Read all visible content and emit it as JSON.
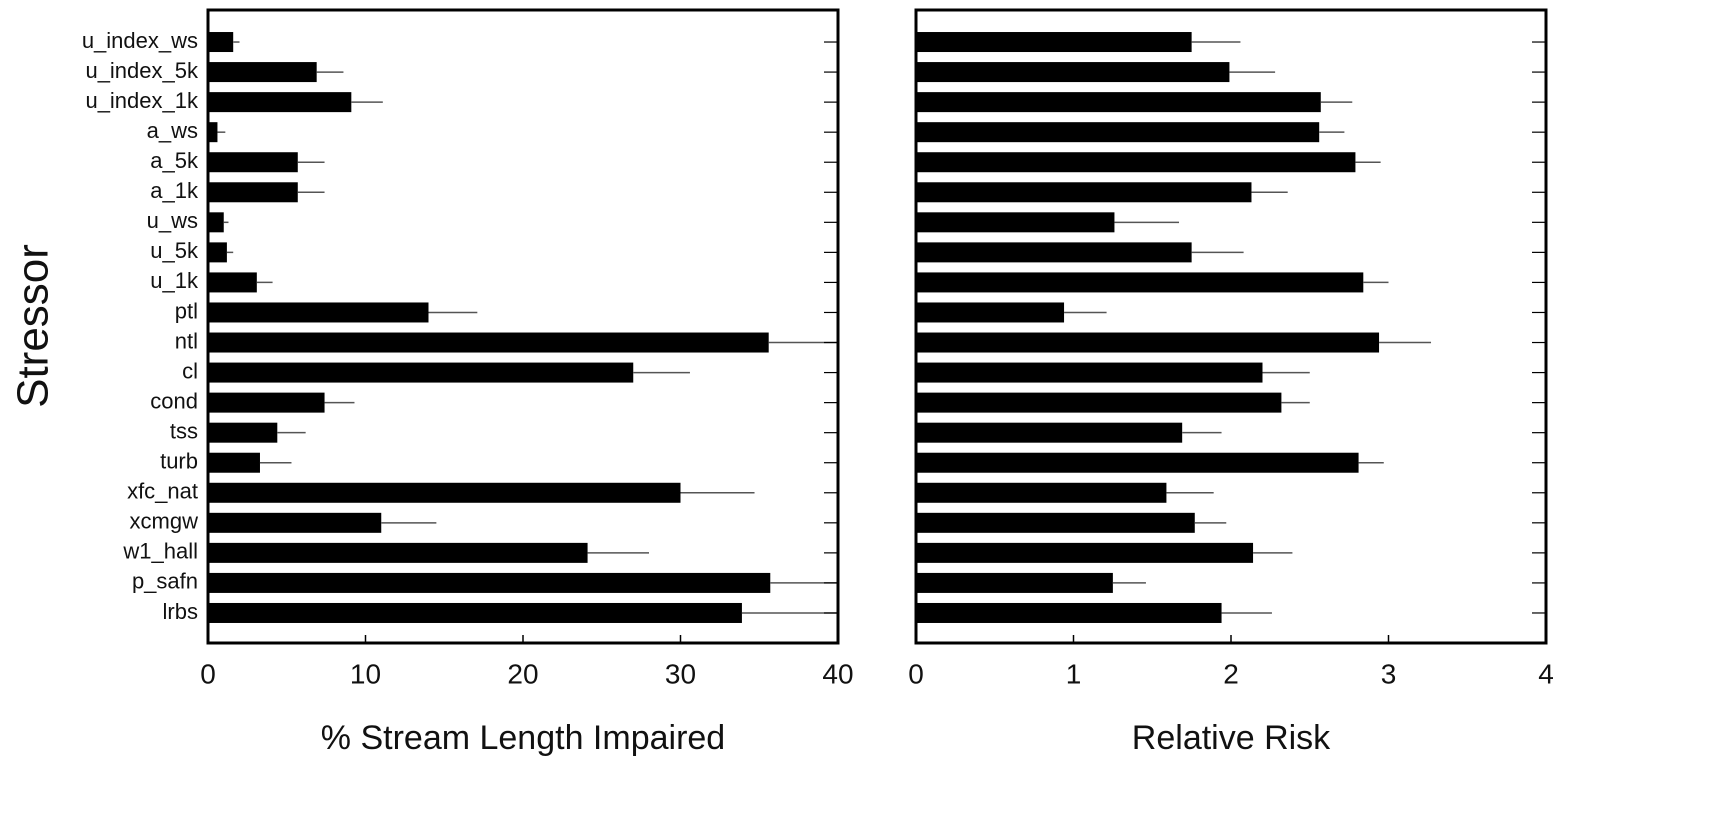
{
  "chart_data": [
    {
      "type": "hbar",
      "ylabel": "Stressor",
      "xlabel": "% Stream Length Impaired",
      "categories": [
        "u_index_ws",
        "u_index_5k",
        "u_index_1k",
        "a_ws",
        "a_5k",
        "a_1k",
        "u_ws",
        "u_5k",
        "u_1k",
        "ptl",
        "ntl",
        "cl",
        "cond",
        "tss",
        "turb",
        "xfc_nat",
        "xcmgw",
        "w1_hall",
        "p_safn",
        "lrbs"
      ],
      "values": [
        1.6,
        6.9,
        9.1,
        0.6,
        5.7,
        5.7,
        1.0,
        1.2,
        3.1,
        14.0,
        35.6,
        27.0,
        7.4,
        4.4,
        3.3,
        30.0,
        11.0,
        24.1,
        35.7,
        33.9
      ],
      "errors": [
        0.4,
        1.7,
        2.0,
        0.5,
        1.7,
        1.7,
        0.3,
        0.4,
        1.0,
        3.1,
        4.4,
        3.6,
        1.9,
        1.8,
        2.0,
        4.7,
        3.5,
        3.9,
        4.5,
        6.3
      ],
      "color": "#000000",
      "xlim": [
        0,
        40
      ],
      "xticks": [
        0,
        10,
        20,
        30,
        40
      ]
    },
    {
      "type": "hbar",
      "xlabel": "Relative Risk",
      "values": [
        1.75,
        1.99,
        2.57,
        2.56,
        2.79,
        2.13,
        1.26,
        1.75,
        2.84,
        0.94,
        2.94,
        2.2,
        2.32,
        1.69,
        2.81,
        1.59,
        1.77,
        2.14,
        1.25,
        1.94
      ],
      "errors": [
        0.31,
        0.29,
        0.2,
        0.16,
        0.16,
        0.23,
        0.41,
        0.33,
        0.16,
        0.27,
        0.33,
        0.3,
        0.18,
        0.25,
        0.16,
        0.3,
        0.2,
        0.25,
        0.21,
        0.32
      ],
      "color": "#000000",
      "xlim": [
        0,
        4
      ],
      "xticks": [
        0,
        1,
        2,
        3,
        4
      ]
    }
  ]
}
